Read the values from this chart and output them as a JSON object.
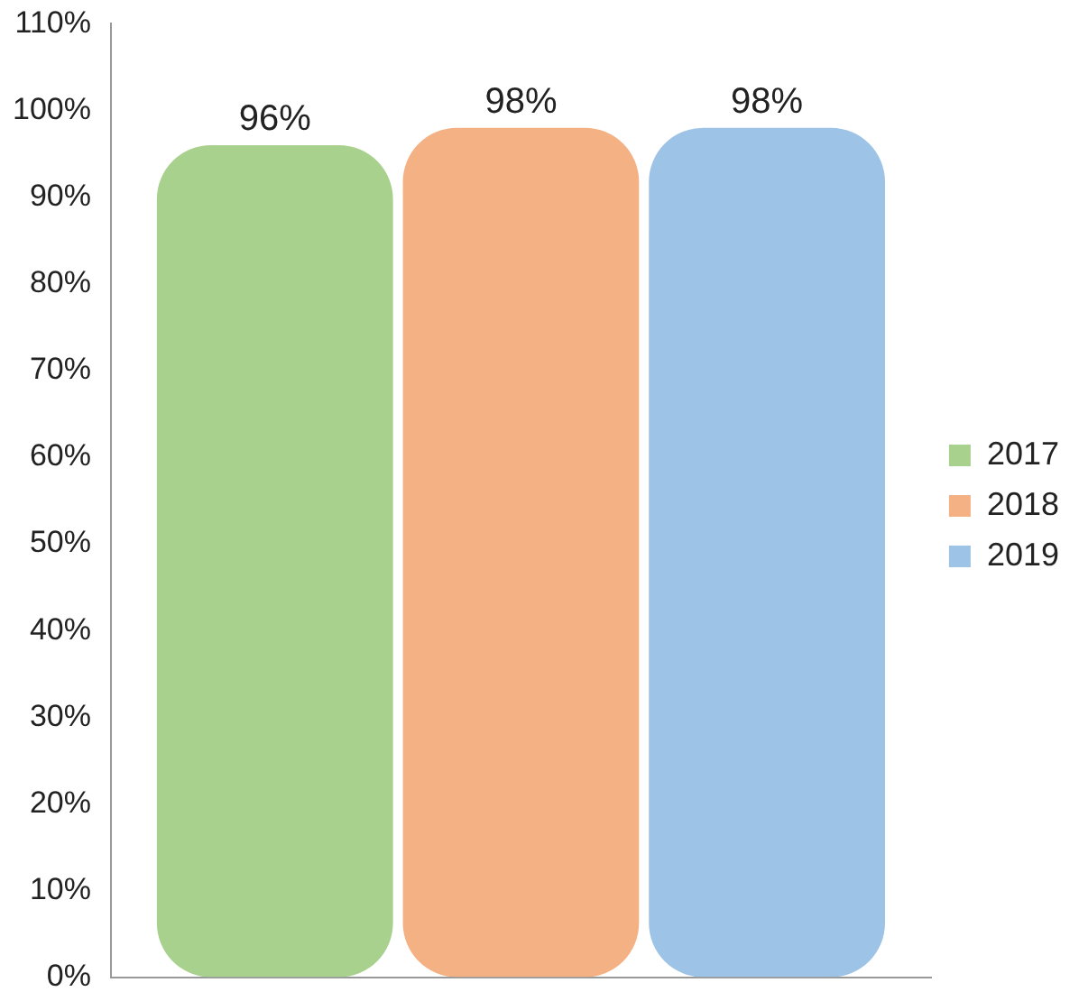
{
  "chart_data": {
    "type": "bar",
    "categories": [
      null
    ],
    "series": [
      {
        "name": "2017",
        "color": "#a9d18e",
        "values": [
          96
        ],
        "value_labels": [
          "96%"
        ]
      },
      {
        "name": "2018",
        "color": "#f4b183",
        "values": [
          98
        ],
        "value_labels": [
          "98%"
        ]
      },
      {
        "name": "2019",
        "color": "#9dc3e6",
        "values": [
          98
        ],
        "value_labels": [
          "98%"
        ]
      }
    ],
    "ylim": [
      0,
      110
    ],
    "yticks": [
      {
        "value": 0,
        "label": "0%"
      },
      {
        "value": 10,
        "label": "10%"
      },
      {
        "value": 20,
        "label": "20%"
      },
      {
        "value": 30,
        "label": "30%"
      },
      {
        "value": 40,
        "label": "40%"
      },
      {
        "value": 50,
        "label": "50%"
      },
      {
        "value": 60,
        "label": "60%"
      },
      {
        "value": 70,
        "label": "70%"
      },
      {
        "value": 80,
        "label": "80%"
      },
      {
        "value": 90,
        "label": "90%"
      },
      {
        "value": 100,
        "label": "100%"
      },
      {
        "value": 110,
        "label": "110%"
      }
    ],
    "grid": false,
    "legend": "right"
  }
}
